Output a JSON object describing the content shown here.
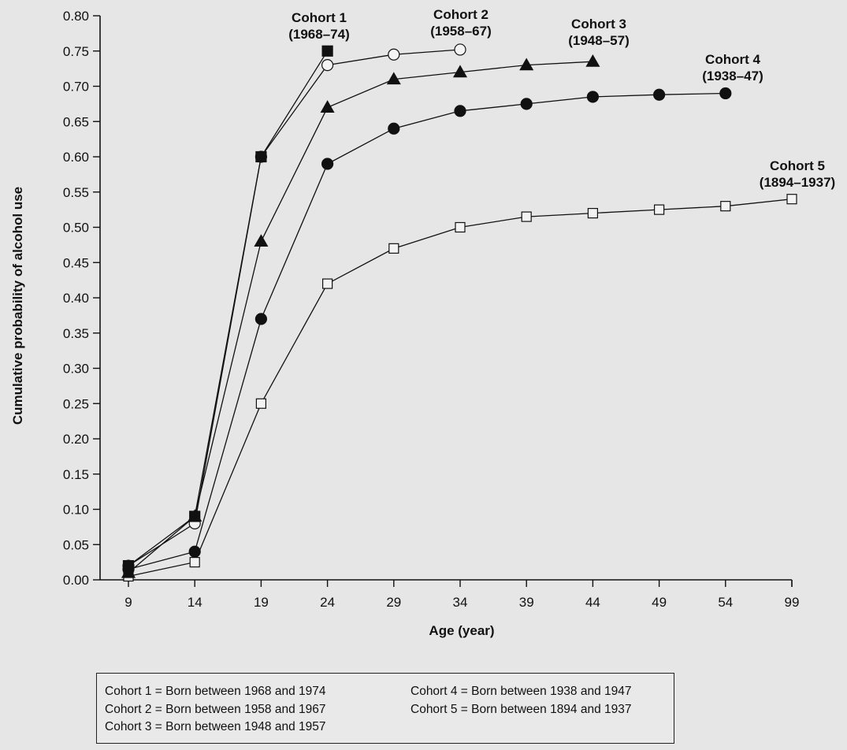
{
  "chart_data": {
    "type": "line",
    "title": "",
    "xlabel": "Age (year)",
    "ylabel": "Cumulative probability of alcohol use",
    "categories": [
      "9",
      "14",
      "19",
      "24",
      "29",
      "34",
      "39",
      "44",
      "49",
      "54",
      "99"
    ],
    "yticks": [
      "0.00",
      "0.05",
      "0.10",
      "0.15",
      "0.20",
      "0.25",
      "0.30",
      "0.35",
      "0.40",
      "0.45",
      "0.50",
      "0.55",
      "0.60",
      "0.65",
      "0.70",
      "0.75",
      "0.80"
    ],
    "ylim": [
      0,
      0.8
    ],
    "grid": false,
    "series": [
      {
        "name": "Cohort 1",
        "label_lines": [
          "Cohort 1",
          "(1968–74)"
        ],
        "marker": "square-filled",
        "values": [
          0.02,
          0.09,
          0.6,
          0.75,
          null,
          null,
          null,
          null,
          null,
          null,
          null
        ]
      },
      {
        "name": "Cohort 2",
        "label_lines": [
          "Cohort 2",
          "(1958–67)"
        ],
        "marker": "circle-open",
        "values": [
          0.02,
          0.08,
          0.6,
          0.73,
          0.745,
          0.752,
          null,
          null,
          null,
          null,
          null
        ]
      },
      {
        "name": "Cohort 3",
        "label_lines": [
          "Cohort 3",
          "(1948–57)"
        ],
        "marker": "triangle-filled",
        "values": [
          0.01,
          0.09,
          0.48,
          0.67,
          0.71,
          0.72,
          0.73,
          0.735,
          null,
          null,
          null
        ]
      },
      {
        "name": "Cohort 4",
        "label_lines": [
          "Cohort 4",
          "(1938–47)"
        ],
        "marker": "circle-filled",
        "values": [
          0.015,
          0.04,
          0.37,
          0.59,
          0.64,
          0.665,
          0.675,
          0.685,
          0.688,
          0.69,
          null
        ]
      },
      {
        "name": "Cohort 5",
        "label_lines": [
          "Cohort 5",
          "(1894–1937)"
        ],
        "marker": "square-open",
        "values": [
          0.005,
          0.025,
          0.25,
          0.42,
          0.47,
          0.5,
          0.515,
          0.52,
          0.525,
          0.53,
          0.54
        ]
      }
    ],
    "legend": {
      "left": [
        "Cohort 1 = Born between 1968 and 1974",
        "Cohort 2 = Born between 1958 and 1967",
        "Cohort 3 = Born between 1948 and 1957"
      ],
      "right": [
        "Cohort 4 = Born between 1938 and 1947",
        "Cohort 5 = Born between 1894 and 1937"
      ]
    }
  }
}
